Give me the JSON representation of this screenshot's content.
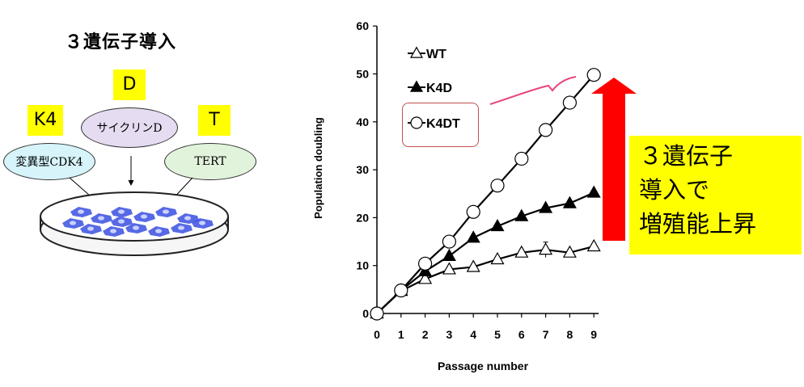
{
  "diagram": {
    "title": "３遺伝子導入",
    "gene_labels": {
      "d": "D",
      "k4": "K4",
      "t": "T"
    },
    "ellipses": {
      "cyclin": "サイクリンD",
      "cdk4": "変異型CDK4",
      "tert": "TERT"
    },
    "colors": {
      "label_box": "#ffff00",
      "cyclin_fill": "#e6dcf2",
      "cdk4_fill": "#d6f4fa",
      "tert_fill": "#e2f3dc",
      "cells": "#3a4fe0"
    }
  },
  "annotation": {
    "lines": [
      "３遺伝子",
      "導入で",
      "増殖能上昇"
    ],
    "arrow_color": "#ff0000",
    "highlight_color": "#ffff00",
    "pen_color": "#e8447a"
  },
  "chart_data": {
    "type": "line",
    "xlabel": "Passage number",
    "ylabel": "Population doubling",
    "x": [
      0,
      1,
      2,
      3,
      4,
      5,
      6,
      7,
      8,
      9
    ],
    "xlim": [
      0,
      9
    ],
    "ylim": [
      0,
      60
    ],
    "yticks": [
      0,
      10,
      20,
      30,
      40,
      50,
      60
    ],
    "grid": false,
    "legend_position": "top-left",
    "series": [
      {
        "name": "WT",
        "marker": "triangle-open",
        "values": [
          0,
          4.7,
          7.2,
          9.2,
          9.7,
          11.3,
          12.7,
          13.3,
          12.7,
          14.0
        ],
        "errors": [
          0,
          0,
          0,
          0,
          0,
          0,
          0,
          1.6,
          0,
          0
        ]
      },
      {
        "name": "K4D",
        "marker": "triangle-filled",
        "values": [
          0,
          4.8,
          8.8,
          12.0,
          15.8,
          18.2,
          20.3,
          22.0,
          23.0,
          25.2
        ]
      },
      {
        "name": "K4DT",
        "marker": "circle-open",
        "values": [
          0,
          4.8,
          10.4,
          15.0,
          21.2,
          26.7,
          32.3,
          38.3,
          44.0,
          49.8
        ]
      }
    ]
  }
}
